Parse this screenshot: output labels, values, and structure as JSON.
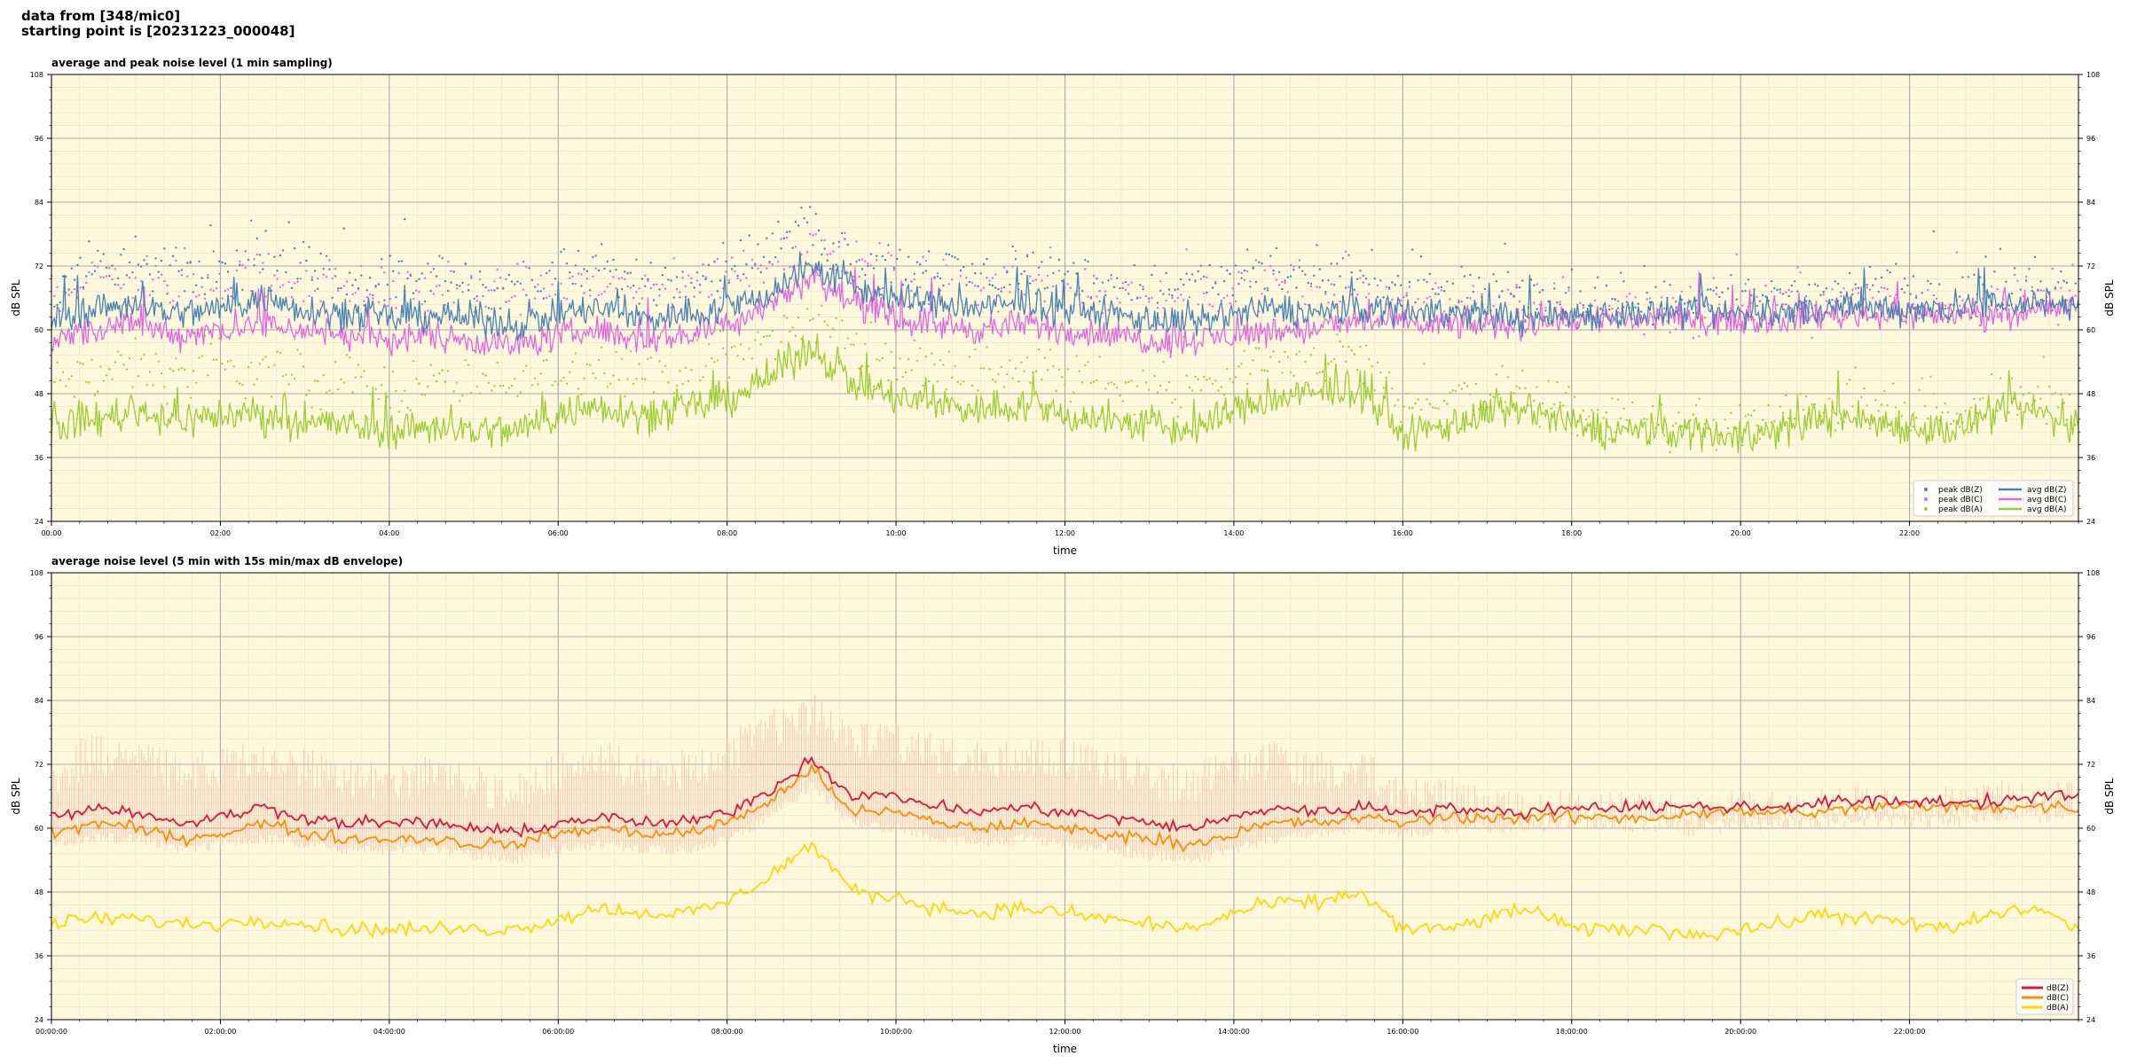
{
  "header": {
    "line1": "data from [348/mic0]",
    "line2": "starting point is [20231223_000048]"
  },
  "colors": {
    "plot_bg": "#fff8dc",
    "z_top": "#4682b4",
    "c_top": "#e066e0",
    "a_top": "#9acd32",
    "z_bottom": "#dc143c",
    "c_bottom": "#ff8c00",
    "a_bottom": "#ffd700",
    "envelope": "#f5b7a8"
  },
  "chart_data": [
    {
      "type": "line",
      "title": "average and peak noise level (1 min sampling)",
      "xlabel": "time",
      "ylabel": "dB SPL",
      "ylim": [
        24,
        108
      ],
      "yticks": [
        24,
        36,
        48,
        60,
        72,
        84,
        96,
        108
      ],
      "xlim": [
        0,
        24
      ],
      "xtick_labels": [
        "00:00",
        "02:00",
        "04:00",
        "06:00",
        "08:00",
        "10:00",
        "12:00",
        "14:00",
        "16:00",
        "18:00",
        "20:00",
        "22:00"
      ],
      "grid": true,
      "legend_position": "lower-right",
      "legend": [
        "peak dB(Z)",
        "peak dB(C)",
        "peak dB(A)",
        "avg dB(Z)",
        "avg dB(C)",
        "avg dB(A)"
      ],
      "x_hours": [
        0,
        0.5,
        1,
        1.5,
        2,
        2.5,
        3,
        3.5,
        4,
        4.5,
        5,
        5.5,
        6,
        6.5,
        7,
        7.5,
        8,
        8.5,
        9,
        9.5,
        10,
        10.5,
        11,
        11.5,
        12,
        12.5,
        13,
        13.5,
        14,
        14.5,
        15,
        15.5,
        16,
        16.5,
        17,
        17.5,
        18,
        18.5,
        19,
        19.5,
        20,
        20.5,
        21,
        21.5,
        22,
        22.5,
        23,
        23.5,
        24
      ],
      "series": [
        {
          "name": "avg dB(Z)",
          "values": [
            62,
            64,
            65,
            63,
            64,
            66,
            64,
            63,
            62,
            63,
            62,
            61,
            63,
            64,
            62,
            63,
            64,
            67,
            72,
            68,
            66,
            65,
            64,
            65,
            64,
            63,
            62,
            61,
            63,
            64,
            63,
            64,
            64,
            63,
            63,
            62,
            63,
            63,
            63,
            63,
            63,
            63,
            64,
            64,
            64,
            64,
            65,
            65,
            65
          ]
        },
        {
          "name": "avg dB(C)",
          "values": [
            58,
            60,
            61,
            59,
            60,
            61,
            60,
            59,
            58,
            59,
            58,
            57,
            59,
            60,
            58,
            59,
            61,
            65,
            70,
            65,
            62,
            61,
            60,
            61,
            60,
            59,
            58,
            58,
            59,
            60,
            60,
            62,
            61,
            61,
            61,
            61,
            62,
            62,
            62,
            62,
            62,
            62,
            63,
            63,
            63,
            63,
            63,
            64,
            64
          ]
        },
        {
          "name": "avg dB(A)",
          "values": [
            42,
            43,
            45,
            43,
            44,
            44,
            43,
            42,
            41,
            42,
            41,
            41,
            44,
            46,
            44,
            45,
            47,
            51,
            57,
            50,
            47,
            46,
            45,
            46,
            44,
            43,
            42,
            41,
            45,
            47,
            48,
            49,
            40,
            42,
            44,
            45,
            42,
            41,
            41,
            41,
            40,
            41,
            44,
            43,
            42,
            41,
            44,
            45,
            41
          ]
        },
        {
          "name": "peak dB(Z)",
          "values": [
            69,
            71,
            72,
            70,
            71,
            73,
            71,
            70,
            69,
            70,
            69,
            68,
            70,
            71,
            69,
            70,
            72,
            75,
            78,
            74,
            72,
            71,
            70,
            71,
            70,
            69,
            68,
            68,
            70,
            71,
            69,
            69,
            68,
            67,
            67,
            66,
            66,
            66,
            66,
            66,
            66,
            67,
            67,
            67,
            67,
            67,
            68,
            68,
            68
          ]
        },
        {
          "name": "peak dB(C)",
          "values": [
            67,
            69,
            70,
            68,
            69,
            70,
            69,
            68,
            67,
            68,
            67,
            66,
            68,
            69,
            67,
            68,
            70,
            73,
            76,
            72,
            70,
            69,
            68,
            69,
            68,
            67,
            66,
            66,
            68,
            69,
            67,
            67,
            66,
            65,
            65,
            64,
            64,
            64,
            64,
            64,
            64,
            65,
            65,
            65,
            65,
            65,
            66,
            66,
            66
          ]
        },
        {
          "name": "peak dB(A)",
          "values": [
            50,
            51,
            53,
            51,
            52,
            52,
            51,
            50,
            49,
            50,
            49,
            49,
            52,
            54,
            52,
            53,
            55,
            58,
            62,
            57,
            54,
            53,
            52,
            53,
            51,
            50,
            49,
            48,
            52,
            54,
            54,
            55,
            46,
            47,
            48,
            48,
            44,
            43,
            42,
            42,
            42,
            43,
            46,
            45,
            44,
            43,
            46,
            47,
            44
          ]
        }
      ]
    },
    {
      "type": "line",
      "title": "average noise level (5 min with 15s min/max dB envelope)",
      "xlabel": "time",
      "ylabel": "dB SPL",
      "ylim": [
        24,
        108
      ],
      "yticks": [
        24,
        36,
        48,
        60,
        72,
        84,
        96,
        108
      ],
      "xlim": [
        0,
        24
      ],
      "xtick_labels": [
        "00:00:00",
        "02:00:00",
        "04:00:00",
        "06:00:00",
        "08:00:00",
        "10:00:00",
        "12:00:00",
        "14:00:00",
        "16:00:00",
        "18:00:00",
        "20:00:00",
        "22:00:00"
      ],
      "grid": true,
      "legend_position": "lower-right",
      "legend": [
        "dB(Z)",
        "dB(C)",
        "dB(A)"
      ],
      "x_hours": [
        0,
        0.5,
        1,
        1.5,
        2,
        2.5,
        3,
        3.5,
        4,
        4.5,
        5,
        5.5,
        6,
        6.5,
        7,
        7.5,
        8,
        8.5,
        9,
        9.5,
        10,
        10.5,
        11,
        11.5,
        12,
        12.5,
        13,
        13.5,
        14,
        14.5,
        15,
        15.5,
        16,
        16.5,
        17,
        17.5,
        18,
        18.5,
        19,
        19.5,
        20,
        20.5,
        21,
        21.5,
        22,
        22.5,
        23,
        23.5,
        24
      ],
      "series": [
        {
          "name": "dB(Z)",
          "values": [
            62,
            64,
            63,
            61,
            62,
            64,
            62,
            61,
            61,
            61,
            60,
            59,
            61,
            62,
            61,
            61,
            63,
            67,
            73,
            66,
            66,
            64,
            63,
            64,
            63,
            62,
            61,
            60,
            62,
            64,
            63,
            64,
            63,
            64,
            63,
            63,
            64,
            64,
            64,
            64,
            64,
            64,
            65,
            65,
            65,
            65,
            65,
            66,
            66
          ]
        },
        {
          "name": "dB(C)",
          "values": [
            59,
            61,
            60,
            58,
            59,
            61,
            59,
            58,
            58,
            58,
            57,
            57,
            59,
            60,
            59,
            59,
            61,
            65,
            71,
            63,
            63,
            61,
            60,
            61,
            60,
            59,
            58,
            57,
            59,
            61,
            61,
            62,
            61,
            62,
            62,
            62,
            62,
            62,
            62,
            63,
            63,
            63,
            63,
            64,
            64,
            64,
            64,
            64,
            64
          ]
        },
        {
          "name": "dB(A)",
          "values": [
            42,
            43,
            43,
            42,
            42,
            43,
            42,
            41,
            41,
            41,
            41,
            41,
            43,
            45,
            44,
            44,
            46,
            51,
            57,
            48,
            47,
            45,
            44,
            45,
            44,
            43,
            42,
            41,
            44,
            46,
            46,
            48,
            41,
            41,
            43,
            45,
            41,
            41,
            41,
            40,
            41,
            42,
            44,
            43,
            42,
            41,
            44,
            45,
            41
          ]
        },
        {
          "name": "envelope min",
          "values": [
            58,
            59,
            59,
            57,
            58,
            59,
            58,
            57,
            57,
            57,
            56,
            55,
            57,
            58,
            57,
            57,
            59,
            63,
            69,
            62,
            61,
            59,
            58,
            59,
            58,
            57,
            56,
            55,
            57,
            59,
            60,
            61,
            60,
            61,
            61,
            61,
            62,
            62,
            62,
            62,
            62,
            62,
            63,
            63,
            63,
            63,
            63,
            64,
            64
          ]
        },
        {
          "name": "envelope max",
          "values": [
            74,
            78,
            77,
            74,
            76,
            77,
            75,
            74,
            73,
            74,
            72,
            71,
            75,
            77,
            74,
            75,
            78,
            82,
            86,
            80,
            80,
            78,
            76,
            78,
            77,
            75,
            73,
            72,
            75,
            77,
            75,
            75,
            70,
            70,
            68,
            67,
            68,
            67,
            67,
            66,
            67,
            67,
            68,
            68,
            68,
            68,
            69,
            69,
            69
          ]
        }
      ]
    }
  ]
}
